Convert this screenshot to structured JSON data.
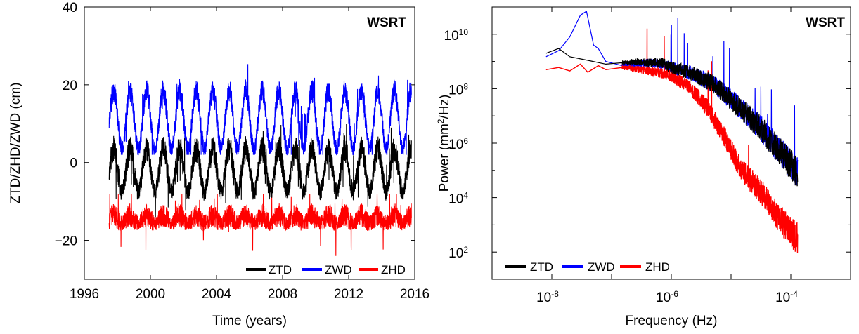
{
  "chart_data": [
    {
      "type": "line",
      "panel_label": "WSRT",
      "xlabel": "Time (years)",
      "ylabel": "ZTD/ZHD/ZWD (cm)",
      "xlim": [
        1996,
        2016
      ],
      "ylim": [
        -30,
        40
      ],
      "xticks": [
        1996,
        2000,
        2004,
        2008,
        2012,
        2016
      ],
      "yticks": [
        -20,
        0,
        20,
        40
      ],
      "ytick_labels": [
        "−20",
        "0",
        "20",
        "40"
      ],
      "data_range_x": [
        1997.5,
        2015.8
      ],
      "legend_position": "bottom-right",
      "grid": false,
      "series": [
        {
          "name": "ZTD",
          "color": "#000000",
          "mean": -2,
          "seasonal_amplitude": 5.5,
          "noise": 3.5,
          "min": -14,
          "max": 10
        },
        {
          "name": "ZWD",
          "color": "#0000ff",
          "mean": 11,
          "seasonal_amplitude": 7.5,
          "noise": 3,
          "min": 2,
          "max": 33
        },
        {
          "name": "ZHD",
          "color": "#ff0000",
          "mean": -14.5,
          "seasonal_amplitude": 1,
          "noise": 3,
          "min": -26,
          "max": -8
        }
      ]
    },
    {
      "type": "line",
      "panel_label": "WSRT",
      "xlabel": "Frequency (Hz)",
      "ylabel_prefix": "Power (mm",
      "ylabel_sup": "2",
      "ylabel_suffix": "/Hz)",
      "xscale": "log",
      "yscale": "log",
      "xlim": [
        1e-09,
        0.001
      ],
      "ylim": [
        10.0,
        100000000000.0
      ],
      "xticks": [
        1e-08,
        1e-06,
        0.0001
      ],
      "yticks": [
        100.0,
        10000.0,
        1000000.0,
        100000000.0,
        10000000000.0
      ],
      "tick_base": "10",
      "xtick_exponents": [
        "-8",
        "-6",
        "-4"
      ],
      "ytick_exponents": [
        "2",
        "4",
        "6",
        "8",
        "10"
      ],
      "legend_position": "bottom-left",
      "grid": false,
      "series": [
        {
          "name": "ZTD",
          "color": "#000000",
          "x": [
            8e-09,
            1.3e-08,
            2e-08,
            4e-08,
            8e-08,
            1.5e-07,
            2.5e-07,
            4e-07,
            7e-07,
            1e-06,
            2e-06,
            5e-06,
            1e-05,
            3e-05,
            0.00013
          ],
          "y": [
            2000000000.0,
            3000000000.0,
            1500000000.0,
            1100000000.0,
            800000000.0,
            900000000.0,
            1000000000.0,
            900000000.0,
            900000000.0,
            600000000.0,
            400000000.0,
            150000000.0,
            40000000.0,
            4000000.0,
            80000.0
          ]
        },
        {
          "name": "ZWD",
          "color": "#0000ff",
          "x": [
            8e-09,
            1.3e-08,
            2e-08,
            3e-08,
            3.8e-08,
            5e-08,
            6e-08,
            8e-08,
            1.5e-07,
            2.5e-07,
            4e-07,
            7e-07,
            1e-06,
            2e-06,
            5e-06,
            1e-05,
            3e-05,
            0.00013
          ],
          "y": [
            1500000000.0,
            2500000000.0,
            8000000000.0,
            50000000000.0,
            70000000000.0,
            4000000000.0,
            3000000000.0,
            1000000000.0,
            700000000.0,
            800000000.0,
            900000000.0,
            800000000.0,
            600000000.0,
            400000000.0,
            150000000.0,
            40000000.0,
            4000000.0,
            80000.0
          ]
        },
        {
          "name": "ZHD",
          "color": "#ff0000",
          "x": [
            8e-09,
            1.3e-08,
            2e-08,
            3e-08,
            4e-08,
            6e-08,
            8e-08,
            1.5e-07,
            3e-07,
            6e-07,
            1e-06,
            2e-06,
            4e-06,
            8e-06,
            1.5e-05,
            3e-05,
            6e-05,
            0.00013
          ],
          "y": [
            500000000.0,
            600000000.0,
            450000000.0,
            800000000.0,
            400000000.0,
            700000000.0,
            500000000.0,
            600000000.0,
            500000000.0,
            400000000.0,
            300000000.0,
            120000000.0,
            20000000.0,
            1500000.0,
            100000.0,
            20000.0,
            2000.0,
            300.0
          ]
        }
      ]
    }
  ]
}
